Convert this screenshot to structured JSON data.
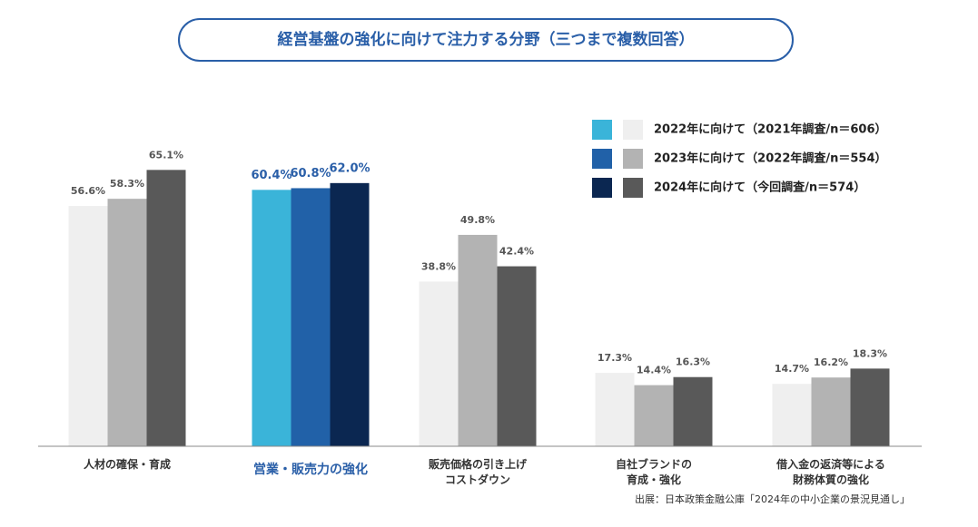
{
  "chart_data": {
    "type": "bar",
    "title": "経営基盤の強化に向けて注力する分野（三つまで複数回答）",
    "source": "出展：日本政策金融公庫「2024年の中小企業の景況見通し」",
    "categories": [
      "人材の確保・育成",
      "営業・販売力の強化",
      "販売価格の引き上げ\nコストダウン",
      "自社ブランドの\n育成・強化",
      "借入金の返済等による\n財務体質の強化"
    ],
    "highlight_category": 1,
    "highlight_label_color": "#2a5fa8",
    "series": [
      {
        "name": "2022年に向けて（2021年調査/n＝606）",
        "color": "#efefef",
        "highlight_color": "#3ab4d9",
        "values": [
          56.6,
          60.4,
          38.8,
          17.3,
          14.7
        ],
        "value_labels": [
          "56.6%",
          "60.4%",
          "38.8%",
          "17.3%",
          "14.7%"
        ]
      },
      {
        "name": "2023年に向けて（2022年調査/n＝554）",
        "color": "#b3b3b3",
        "highlight_color": "#2161a8",
        "values": [
          58.3,
          60.8,
          49.8,
          14.4,
          16.2
        ],
        "value_labels": [
          "58.3%",
          "60.8%",
          "49.8%",
          "14.4%",
          "16.2%"
        ]
      },
      {
        "name": "2024年に向けて（今回調査/n＝574）",
        "color": "#595959",
        "highlight_color": "#0b2751",
        "values": [
          65.1,
          62.0,
          42.4,
          16.3,
          18.3
        ],
        "value_labels": [
          "65.1%",
          "62.0%",
          "42.4%",
          "16.3%",
          "18.3%"
        ]
      }
    ]
  }
}
